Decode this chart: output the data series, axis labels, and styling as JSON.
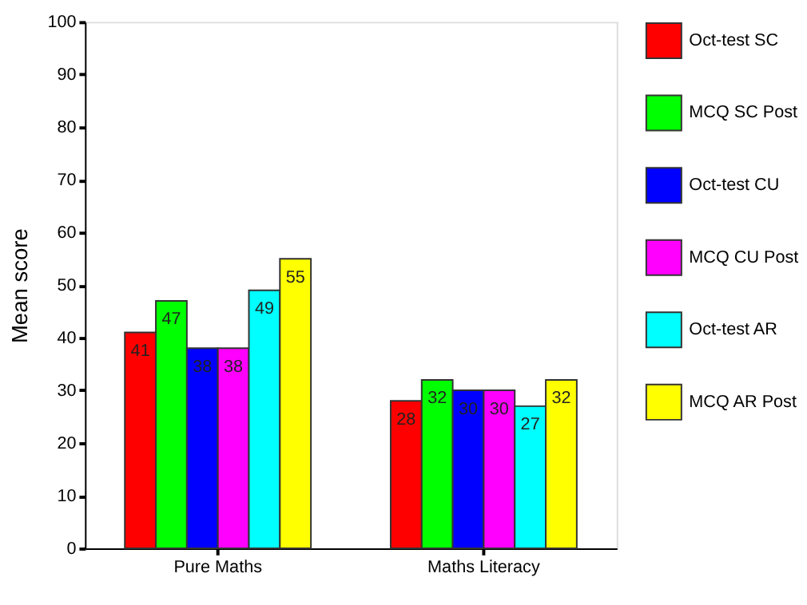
{
  "chart_data": {
    "type": "bar",
    "ylabel": "Mean score",
    "categories": [
      "Pure Maths",
      "Maths Literacy"
    ],
    "series": [
      {
        "name": "Oct-test SC",
        "color": "#ff0000",
        "values": [
          41,
          28
        ]
      },
      {
        "name": "MCQ SC Post",
        "color": "#00ff00",
        "values": [
          47,
          32
        ]
      },
      {
        "name": "Oct-test CU",
        "color": "#0000ff",
        "values": [
          38,
          30
        ]
      },
      {
        "name": "MCQ CU Post",
        "color": "#ff00ff",
        "values": [
          38,
          30
        ]
      },
      {
        "name": "Oct-test AR",
        "color": "#00ffff",
        "values": [
          49,
          27
        ]
      },
      {
        "name": "MCQ AR Post",
        "color": "#ffff00",
        "values": [
          55,
          32
        ]
      }
    ],
    "ylim": [
      0,
      100
    ],
    "yticks": [
      0,
      10,
      20,
      30,
      40,
      50,
      60,
      70,
      80,
      90,
      100
    ],
    "data_labels": true,
    "legend": "right",
    "grid": false
  }
}
